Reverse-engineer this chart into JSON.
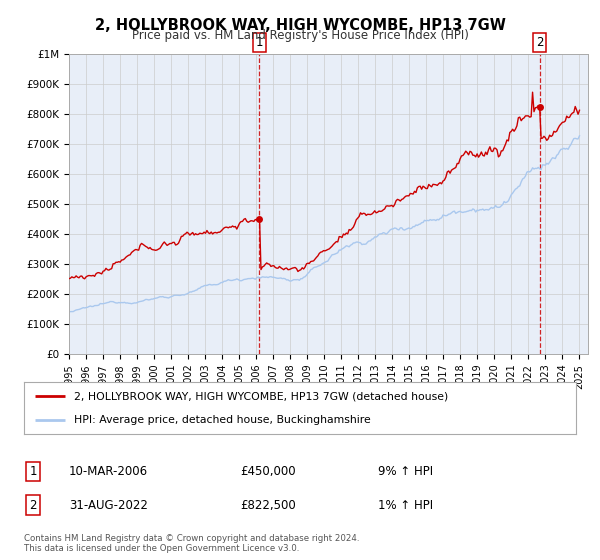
{
  "title": "2, HOLLYBROOK WAY, HIGH WYCOMBE, HP13 7GW",
  "subtitle": "Price paid vs. HM Land Registry's House Price Index (HPI)",
  "ylim": [
    0,
    1000000
  ],
  "xlim_start": 1995.0,
  "xlim_end": 2025.5,
  "grid_color": "#cccccc",
  "hpi_color": "#aac8ee",
  "price_color": "#cc0000",
  "sale1_date": 2006.19,
  "sale1_price": 450000,
  "sale2_date": 2022.66,
  "sale2_price": 822500,
  "legend_line1": "2, HOLLYBROOK WAY, HIGH WYCOMBE, HP13 7GW (detached house)",
  "legend_line2": "HPI: Average price, detached house, Buckinghamshire",
  "table_row1": [
    "1",
    "10-MAR-2006",
    "£450,000",
    "9% ↑ HPI"
  ],
  "table_row2": [
    "2",
    "31-AUG-2022",
    "£822,500",
    "1% ↑ HPI"
  ],
  "footer1": "Contains HM Land Registry data © Crown copyright and database right 2024.",
  "footer2": "This data is licensed under the Open Government Licence v3.0.",
  "bg_color": "#ffffff",
  "plot_bg_color": "#e8eef8",
  "ytick_labels": [
    "£0",
    "£100K",
    "£200K",
    "£300K",
    "£400K",
    "£500K",
    "£600K",
    "£700K",
    "£800K",
    "£900K",
    "£1M"
  ],
  "ytick_values": [
    0,
    100000,
    200000,
    300000,
    400000,
    500000,
    600000,
    700000,
    800000,
    900000,
    1000000
  ]
}
